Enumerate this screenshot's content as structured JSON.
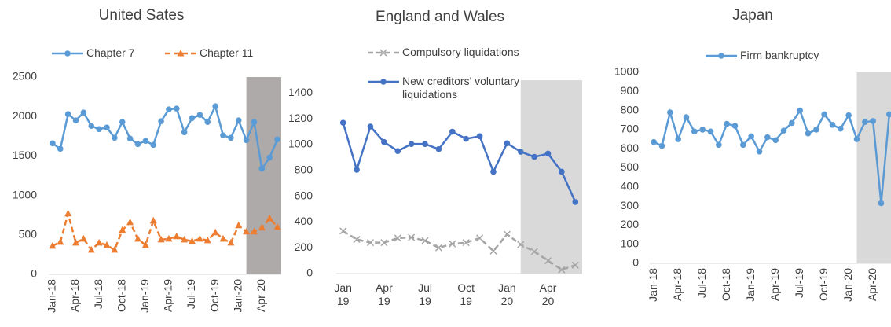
{
  "chart_data": [
    {
      "type": "line",
      "title": "United Sates",
      "categories": [
        "Jan-18",
        null,
        null,
        "Apr-18",
        null,
        null,
        "Jul-18",
        null,
        null,
        "Oct-18",
        null,
        null,
        "Jan-19",
        null,
        null,
        "Apr-19",
        null,
        null,
        "Jul-19",
        null,
        null,
        "Oct-19",
        null,
        null,
        "Jan-20",
        null,
        null,
        "Apr-20",
        null,
        null
      ],
      "series": [
        {
          "name": "Chapter 7",
          "color": "#5b9bd5",
          "marker": "circle",
          "dash": false,
          "values": [
            1660,
            1590,
            2030,
            1950,
            2050,
            1880,
            1840,
            1860,
            1730,
            1930,
            1720,
            1650,
            1690,
            1640,
            1940,
            2090,
            2100,
            1800,
            1980,
            2020,
            1930,
            2130,
            1760,
            1730,
            1950,
            1700,
            1930,
            1340,
            1480,
            1710
          ]
        },
        {
          "name": "Chapter 11",
          "color": "#ed7d31",
          "marker": "triangle",
          "dash": true,
          "values": [
            360,
            410,
            770,
            400,
            450,
            310,
            400,
            370,
            310,
            560,
            660,
            450,
            370,
            680,
            440,
            450,
            480,
            440,
            420,
            450,
            430,
            530,
            450,
            400,
            620,
            540,
            540,
            590,
            710,
            600
          ]
        }
      ],
      "ylim": [
        0,
        2500
      ],
      "yticks": [
        0,
        500,
        1000,
        1500,
        2000,
        2500
      ],
      "grid": false
    },
    {
      "type": "line",
      "title": "England and Wales",
      "categories": [
        "Jan\n19",
        null,
        null,
        "Apr\n19",
        null,
        null,
        "Jul\n19",
        null,
        null,
        "Oct\n19",
        null,
        null,
        "Jan\n20",
        null,
        null,
        "Apr\n20",
        null,
        null
      ],
      "series": [
        {
          "name": "Compulsory liquidations",
          "color": "#a5a5a5",
          "marker": "cross",
          "dash": true,
          "values": [
            330,
            265,
            240,
            240,
            275,
            280,
            255,
            200,
            230,
            240,
            275,
            175,
            305,
            225,
            170,
            100,
            30,
            65
          ]
        },
        {
          "name": "New creditors' voluntary liquidations",
          "color": "#4472c4",
          "marker": "circle",
          "dash": false,
          "values": [
            1170,
            805,
            1140,
            1020,
            950,
            1005,
            1005,
            965,
            1100,
            1045,
            1065,
            790,
            1010,
            945,
            905,
            930,
            790,
            555
          ]
        }
      ],
      "ylim": [
        0,
        1500
      ],
      "yticks": [
        0,
        200,
        400,
        600,
        800,
        1000,
        1200,
        1400
      ],
      "grid": false
    },
    {
      "type": "line",
      "title": "Japan",
      "categories": [
        "Jan-18",
        null,
        null,
        "Apr-18",
        null,
        null,
        "Jul-18",
        null,
        null,
        "Oct-18",
        null,
        null,
        "Jan-19",
        null,
        null,
        "Apr-19",
        null,
        null,
        "Jul-19",
        null,
        null,
        "Oct-19",
        null,
        null,
        "Jan-20",
        null,
        null,
        "Apr-20",
        null,
        null
      ],
      "series": [
        {
          "name": "Firm bankruptcy",
          "color": "#5b9bd5",
          "marker": "circle",
          "dash": false,
          "values": [
            635,
            615,
            790,
            650,
            765,
            690,
            700,
            690,
            620,
            730,
            720,
            620,
            665,
            585,
            660,
            645,
            695,
            735,
            800,
            680,
            700,
            780,
            725,
            705,
            775,
            650,
            740,
            745,
            315,
            780
          ]
        }
      ],
      "ylim": [
        0,
        1000
      ],
      "yticks": [
        0,
        100,
        200,
        300,
        400,
        500,
        600,
        700,
        800,
        900,
        1000
      ],
      "grid": false
    }
  ]
}
